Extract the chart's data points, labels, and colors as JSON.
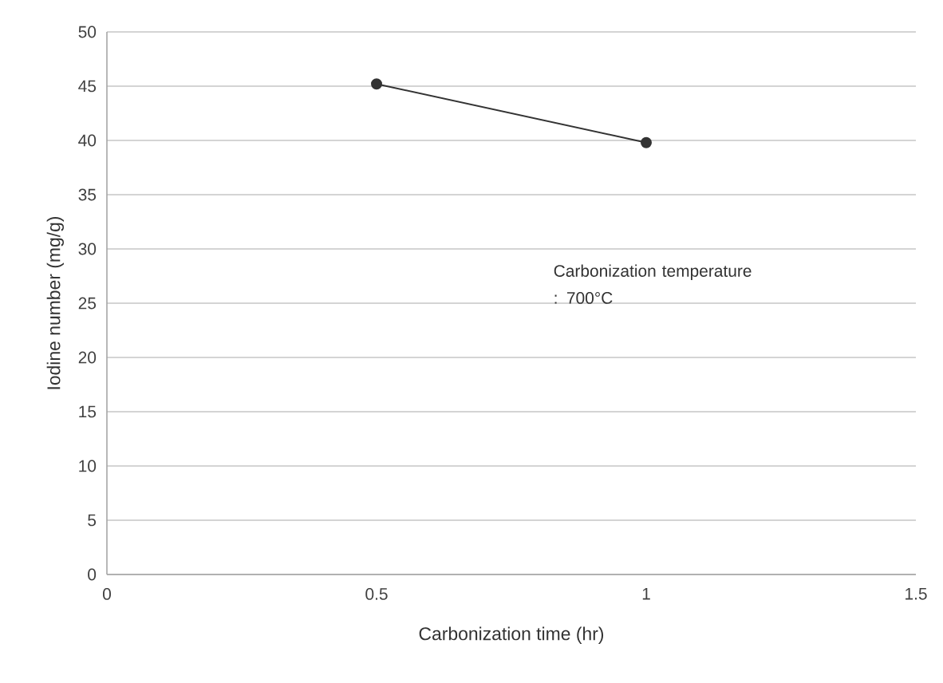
{
  "chart_data": {
    "type": "line",
    "xlabel": "Carbonization time (hr)",
    "ylabel": "Iodine number (mg/g)",
    "x": [
      0.5,
      1
    ],
    "values": [
      45.2,
      39.8
    ],
    "color": "#333333",
    "marker": "circle",
    "line_style": "solid",
    "xlim": [
      0,
      1.5
    ],
    "xticks": [
      0,
      0.5,
      1,
      1.5
    ],
    "ylim": [
      0,
      50
    ],
    "yticks": [
      0,
      5,
      10,
      15,
      20,
      25,
      30,
      35,
      40,
      45,
      50
    ],
    "grid": "y",
    "annotations": [
      "Carbonization temperature : 700°C"
    ]
  }
}
